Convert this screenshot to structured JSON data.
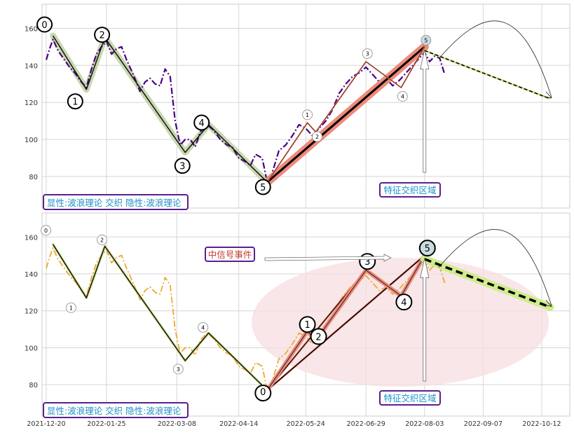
{
  "chart_data": [
    {
      "type": "line",
      "ylim": [
        63,
        173
      ],
      "yticks": [
        80,
        100,
        120,
        140,
        160
      ],
      "grid": true,
      "wave_points": [
        {
          "x": "2021-12-24",
          "y": 156,
          "label": "0"
        },
        {
          "x": "2022-01-13",
          "y": 127,
          "label": "1"
        },
        {
          "x": "2022-01-24",
          "y": 155,
          "label": "2"
        },
        {
          "x": "2022-03-13",
          "y": 93,
          "label": "3"
        },
        {
          "x": "2022-03-27",
          "y": 108,
          "label": "4"
        },
        {
          "x": "2022-05-01",
          "y": 77,
          "label": "5"
        }
      ],
      "sub_wave_points": [
        {
          "x": "2022-05-01",
          "y": 77,
          "label": "0"
        },
        {
          "x": "2022-05-25",
          "y": 109,
          "label": "1"
        },
        {
          "x": "2022-05-30",
          "y": 104,
          "label": "2"
        },
        {
          "x": "2022-06-29",
          "y": 142,
          "label": "3"
        },
        {
          "x": "2022-07-20",
          "y": 128,
          "label": "4"
        },
        {
          "x": "2022-08-03",
          "y": 150,
          "label": "5"
        }
      ],
      "price_series": [
        [
          "2021-12-20",
          143
        ],
        [
          "2021-12-22",
          149
        ],
        [
          "2021-12-24",
          154
        ],
        [
          "2021-12-27",
          148
        ],
        [
          "2021-12-30",
          144
        ],
        [
          "2022-01-03",
          139
        ],
        [
          "2022-01-06",
          136
        ],
        [
          "2022-01-10",
          131
        ],
        [
          "2022-01-13",
          128
        ],
        [
          "2022-01-16",
          138
        ],
        [
          "2022-01-19",
          146
        ],
        [
          "2022-01-22",
          150
        ],
        [
          "2022-01-25",
          153
        ],
        [
          "2022-01-28",
          146
        ],
        [
          "2022-01-31",
          149
        ],
        [
          "2022-02-03",
          150
        ],
        [
          "2022-02-06",
          143
        ],
        [
          "2022-02-10",
          135
        ],
        [
          "2022-02-14",
          126
        ],
        [
          "2022-02-17",
          131
        ],
        [
          "2022-02-20",
          133
        ],
        [
          "2022-02-23",
          130
        ],
        [
          "2022-02-26",
          129
        ],
        [
          "2022-03-01",
          138
        ],
        [
          "2022-03-04",
          134
        ],
        [
          "2022-03-07",
          110
        ],
        [
          "2022-03-10",
          97
        ],
        [
          "2022-03-13",
          100
        ],
        [
          "2022-03-16",
          100
        ],
        [
          "2022-03-19",
          96
        ],
        [
          "2022-03-22",
          104
        ],
        [
          "2022-03-26",
          108
        ],
        [
          "2022-03-30",
          105
        ],
        [
          "2022-04-03",
          100
        ],
        [
          "2022-04-07",
          97
        ],
        [
          "2022-04-10",
          96
        ],
        [
          "2022-04-14",
          90
        ],
        [
          "2022-04-18",
          88
        ],
        [
          "2022-04-21",
          86
        ],
        [
          "2022-04-24",
          92
        ],
        [
          "2022-04-28",
          90
        ],
        [
          "2022-05-01",
          77
        ],
        [
          "2022-05-04",
          82
        ],
        [
          "2022-05-08",
          94
        ],
        [
          "2022-05-12",
          97
        ],
        [
          "2022-05-16",
          102
        ],
        [
          "2022-05-20",
          108
        ],
        [
          "2022-05-24",
          106
        ],
        [
          "2022-05-28",
          102
        ],
        [
          "2022-06-01",
          106
        ],
        [
          "2022-06-05",
          110
        ],
        [
          "2022-06-09",
          116
        ],
        [
          "2022-06-13",
          125
        ],
        [
          "2022-06-17",
          130
        ],
        [
          "2022-06-21",
          134
        ],
        [
          "2022-06-25",
          136
        ],
        [
          "2022-06-29",
          139
        ],
        [
          "2022-07-03",
          135
        ],
        [
          "2022-07-07",
          131
        ],
        [
          "2022-07-11",
          133
        ],
        [
          "2022-07-15",
          129
        ],
        [
          "2022-07-19",
          132
        ],
        [
          "2022-07-23",
          136
        ],
        [
          "2022-07-27",
          140
        ],
        [
          "2022-07-31",
          144
        ],
        [
          "2022-08-03",
          147
        ],
        [
          "2022-08-06",
          142
        ],
        [
          "2022-08-09",
          145
        ],
        [
          "2022-08-12",
          144
        ],
        [
          "2022-08-15",
          135
        ]
      ],
      "projection": {
        "from": {
          "x": "2022-08-03",
          "y": 148
        },
        "to": {
          "x": "2022-10-17",
          "y": 122
        }
      },
      "annotations": {
        "legend_text": "显性:波浪理论 交织 隐性:波浪理论",
        "zone_text": "特征交织区域"
      },
      "colors": {
        "price_line": "#4b0082",
        "main_trend": "#000000",
        "band": "#c8d8b0",
        "red_band": "#ef8a7a",
        "projection": "#000000"
      }
    },
    {
      "type": "line",
      "ylim": [
        63,
        173
      ],
      "yticks": [
        80,
        100,
        120,
        140,
        160
      ],
      "grid": true,
      "xticks": [
        "2021-12-20",
        "2022-01-25",
        "2022-03-08",
        "2022-04-14",
        "2022-05-24",
        "2022-06-29",
        "2022-08-03",
        "2022-09-07",
        "2022-10-12"
      ],
      "annotations": {
        "legend_text": "显性:波浪理论 交织 隐性:波浪理论",
        "zone_text": "特征交织区域",
        "signal_text": "中信号事件"
      },
      "colors": {
        "price_line": "#f0a830",
        "main_trend": "#000000",
        "projection_band": "#d0ec8c",
        "ellipse": "#f6dde0",
        "red_band": "#ef8a7a"
      }
    }
  ]
}
